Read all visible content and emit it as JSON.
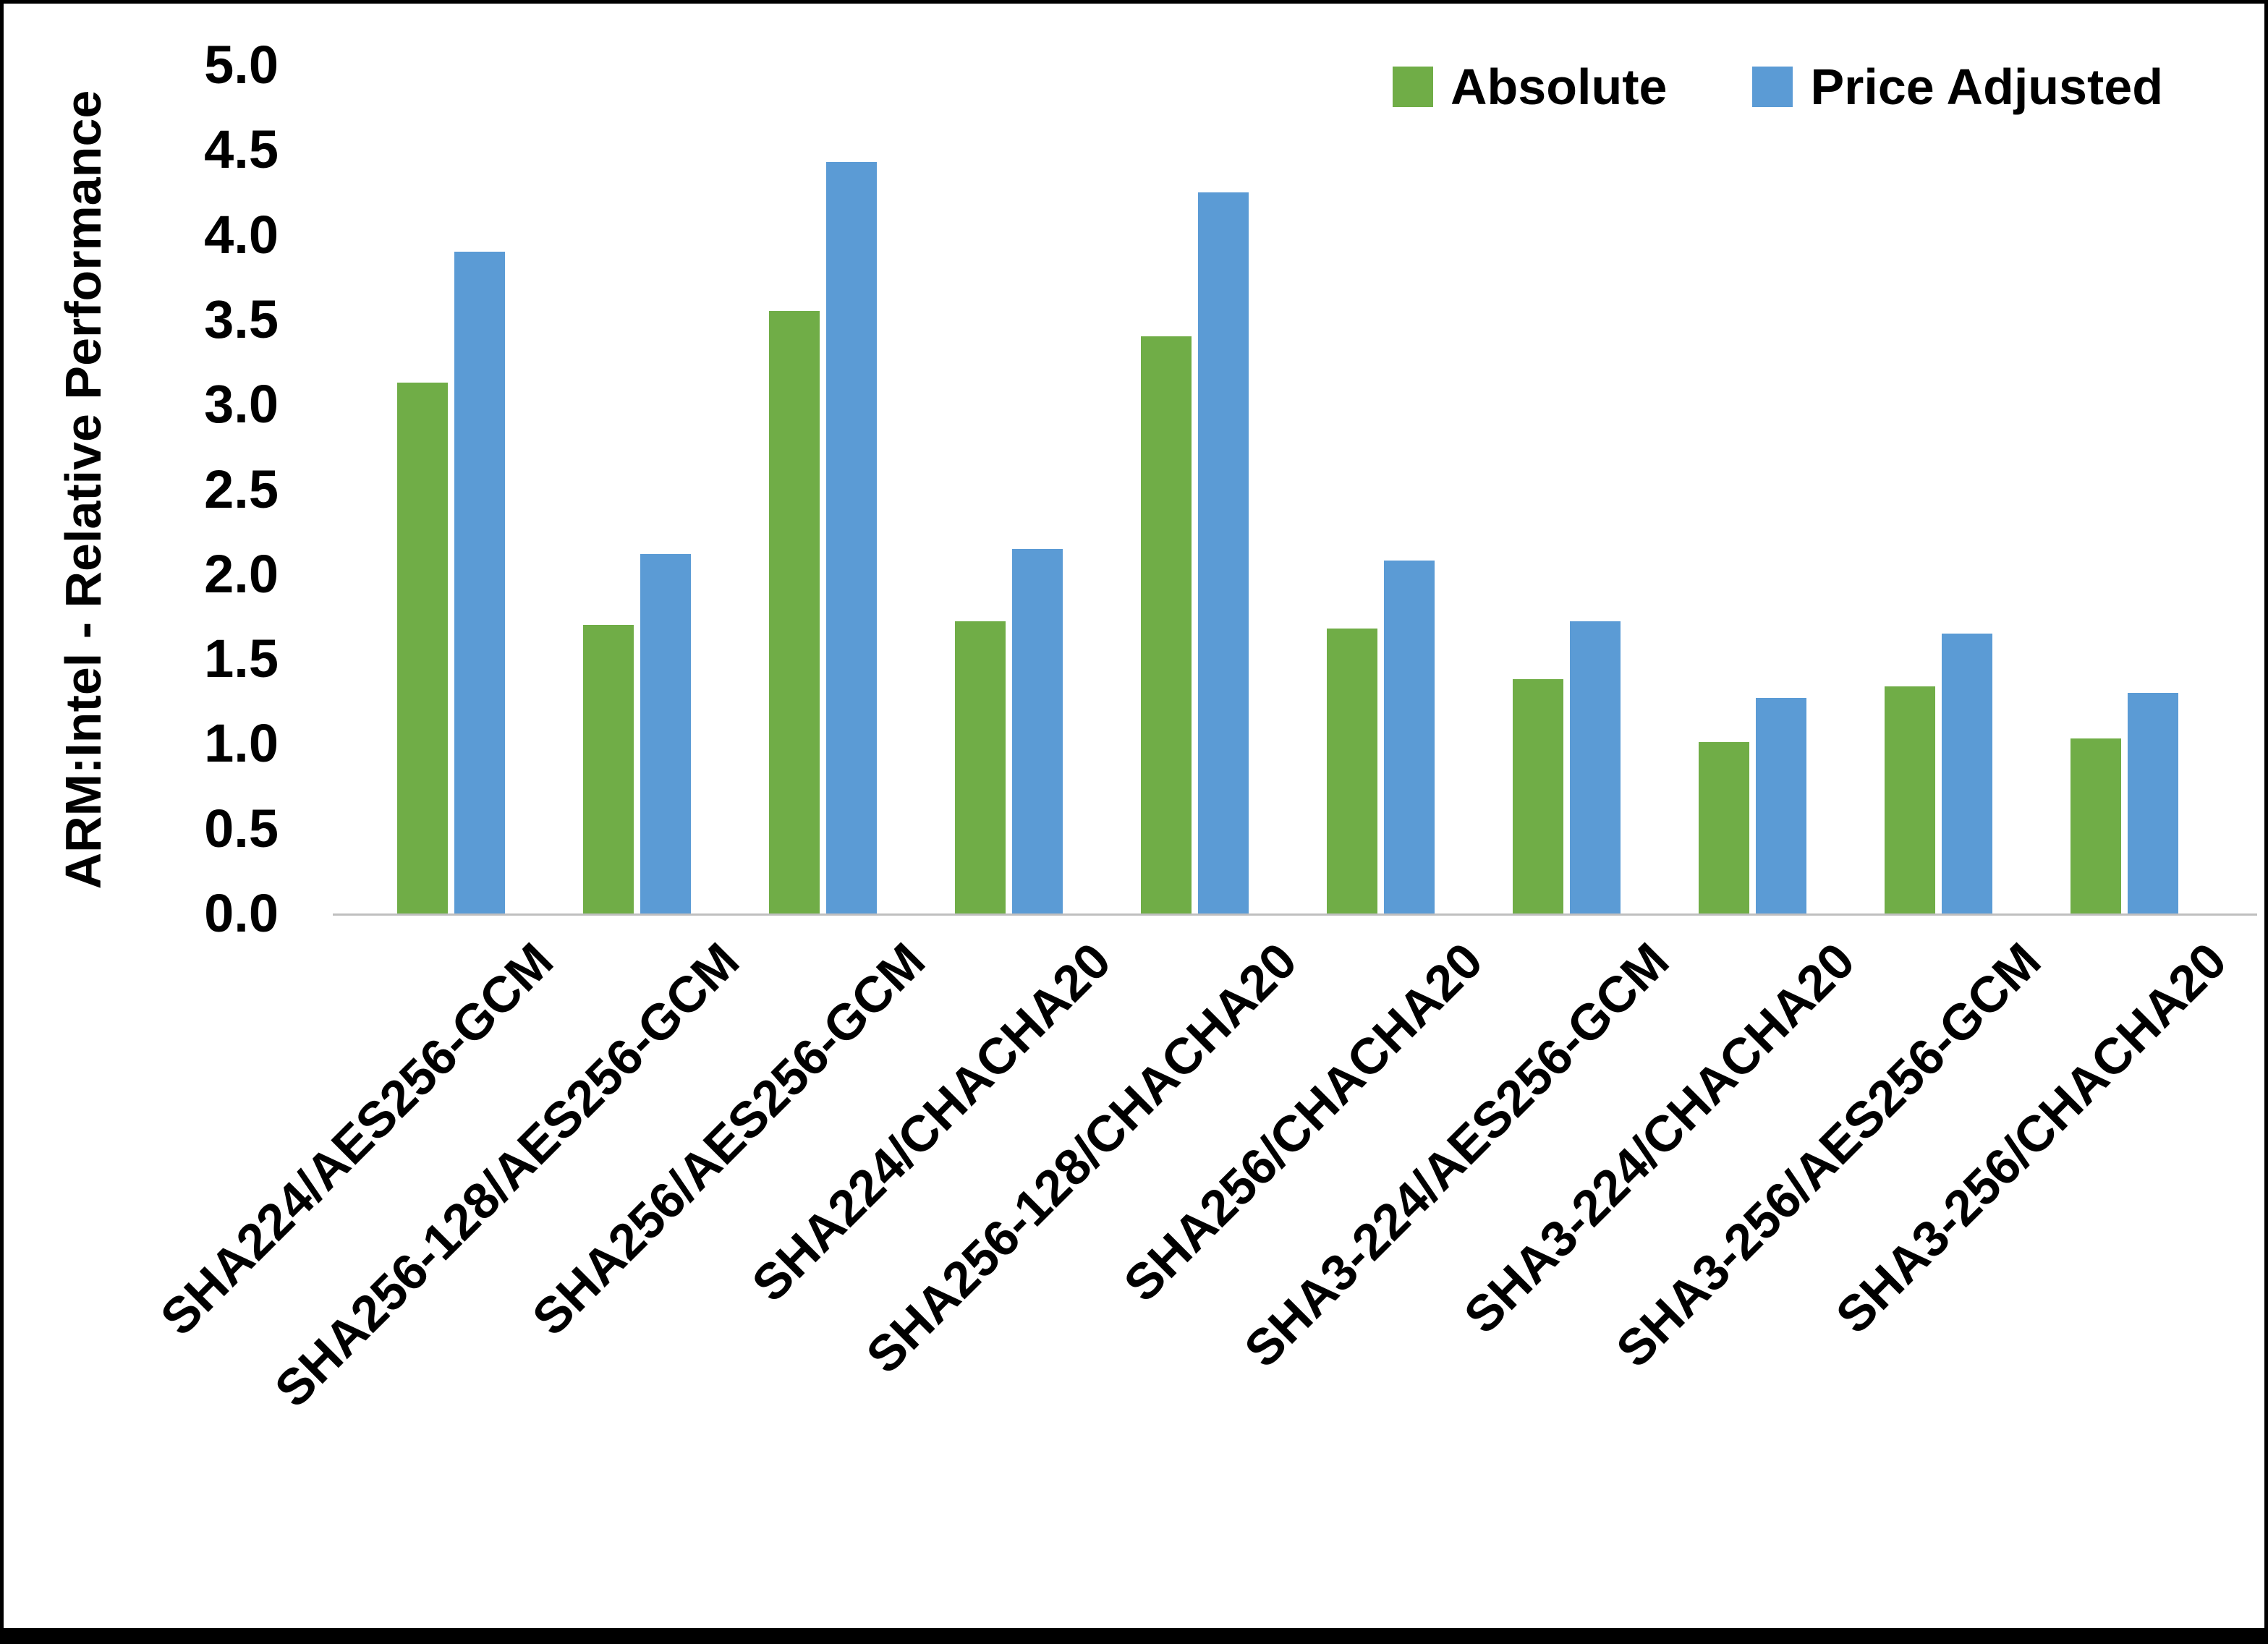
{
  "chart_data": {
    "type": "bar",
    "title": "",
    "xlabel": "",
    "ylabel": "ARM:Intel - Relative Performance",
    "ylim": [
      0,
      5
    ],
    "y_tick_step": 0.5,
    "y_ticks": [
      "0.0",
      "0.5",
      "1.0",
      "1.5",
      "2.0",
      "2.5",
      "3.0",
      "3.5",
      "4.0",
      "4.5",
      "5.0"
    ],
    "grid": false,
    "legend_position": "top-right",
    "axis_line_color": "#bfbfbf",
    "categories": [
      "SHA224/AES256-GCM",
      "SHA256-128/AES256-GCM",
      "SHA256/AES256-GCM",
      "SHA224/CHACHA20",
      "SHA256-128/CHACHA20",
      "SHA256/CHACHA20",
      "SHA3-224/AES256-GCM",
      "SHA3-224/CHACHA20",
      "SHA3-256/AES256-GCM",
      "SHA3-256/CHACHA20"
    ],
    "series": [
      {
        "name": "Absolute",
        "key": "absolute",
        "color": "#70AD47",
        "values": [
          3.13,
          1.7,
          3.55,
          1.72,
          3.4,
          1.68,
          1.38,
          1.01,
          1.34,
          1.03
        ]
      },
      {
        "name": "Price Adjusted",
        "key": "price-adjusted",
        "color": "#5B9BD5",
        "values": [
          3.9,
          2.12,
          4.43,
          2.15,
          4.25,
          2.08,
          1.72,
          1.27,
          1.65,
          1.3
        ]
      }
    ]
  }
}
